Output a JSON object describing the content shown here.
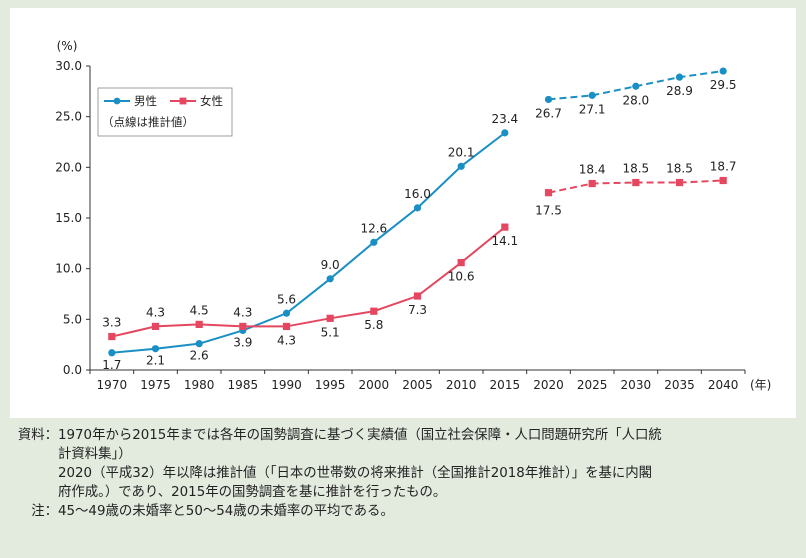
{
  "chart_data": {
    "type": "line",
    "unit_label": "(%)",
    "x_unit": "(年)",
    "categories": [
      "1970",
      "1975",
      "1980",
      "1985",
      "1990",
      "1995",
      "2000",
      "2005",
      "2010",
      "2015",
      "2020",
      "2025",
      "2030",
      "2035",
      "2040"
    ],
    "ylim": [
      0,
      30
    ],
    "y_ticks": [
      "0.0",
      "5.0",
      "10.0",
      "15.0",
      "20.0",
      "25.0",
      "30.0"
    ],
    "legend_placement": "top-left",
    "legend_note": "（点線は推計値）",
    "grid": false,
    "series": [
      {
        "name": "男性",
        "color": "#1a8fc4",
        "marker": "circle",
        "actual": [
          1.7,
          2.1,
          2.6,
          3.9,
          5.6,
          9.0,
          12.6,
          16.0,
          20.1,
          23.4
        ],
        "actual_labels": [
          "1.7",
          "2.1",
          "2.6",
          "3.9",
          "5.6",
          "9.0",
          "12.6",
          "16.0",
          "20.1",
          "23.4"
        ],
        "projected": [
          26.7,
          27.1,
          28.0,
          28.9,
          29.5
        ],
        "projected_labels": [
          "26.7",
          "27.1",
          "28.0",
          "28.9",
          "29.5"
        ]
      },
      {
        "name": "女性",
        "color": "#e4475f",
        "marker": "square",
        "actual": [
          3.3,
          4.3,
          4.5,
          4.3,
          4.3,
          5.1,
          5.8,
          7.3,
          10.6,
          14.1
        ],
        "actual_labels": [
          "3.3",
          "4.3",
          "4.5",
          "4.3",
          "4.3",
          "5.1",
          "5.8",
          "7.3",
          "10.6",
          "14.1"
        ],
        "projected": [
          17.5,
          18.4,
          18.5,
          18.5,
          18.7
        ],
        "projected_labels": [
          "17.5",
          "18.4",
          "18.5",
          "18.5",
          "18.7"
        ]
      }
    ]
  },
  "notes": {
    "source_head": "資料：",
    "source_lines": [
      "1970年から2015年までは各年の国勢調査に基づく実績値（国立社会保障・人口問題研究所「人口統",
      "計資料集」）",
      "2020（平成32）年以降は推計値（「日本の世帯数の将来推計（全国推計2018年推計）」を基に内閣",
      "府作成。）であり、2015年の国勢調査を基に推計を行ったもの。"
    ],
    "note_head": "注：",
    "note_lines": [
      "45～49歳の未婚率と50～54歳の未婚率の平均である。"
    ]
  }
}
